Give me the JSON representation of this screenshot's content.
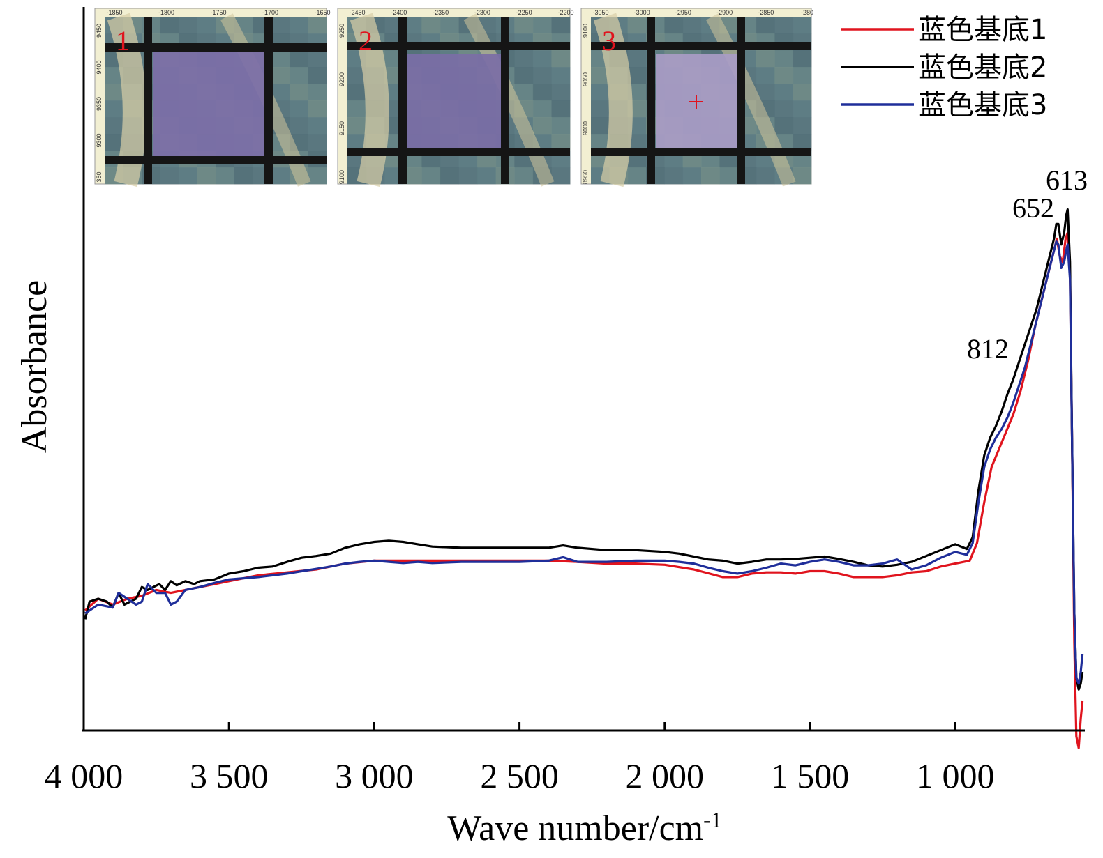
{
  "chart_data": {
    "type": "line",
    "xlabel": "Wave number/cm",
    "xlabel_sup": "-1",
    "ylabel": "Absorbance",
    "xlim": [
      4000,
      560
    ],
    "x_reversed": true,
    "ylim": [
      0,
      1
    ],
    "y_ticks_shown": false,
    "x_ticks": [
      {
        "value": 4000,
        "label": "4 000"
      },
      {
        "value": 3500,
        "label": "3 500"
      },
      {
        "value": 3000,
        "label": "3 000"
      },
      {
        "value": 2500,
        "label": "2 500"
      },
      {
        "value": 2000,
        "label": "2 000"
      },
      {
        "value": 1500,
        "label": "1 500"
      },
      {
        "value": 1000,
        "label": "1 000"
      }
    ],
    "legend": {
      "position": "top-right"
    },
    "annotations": [
      {
        "text": "812",
        "x": 812,
        "y": 0.61
      },
      {
        "text": "652",
        "x": 652,
        "y": 0.87
      },
      {
        "text": "613",
        "x": 613,
        "y": 0.91
      }
    ],
    "series": [
      {
        "name": "蓝色基底1",
        "color": "#e0141e",
        "points": [
          [
            3995,
            0.205
          ],
          [
            3950,
            0.225
          ],
          [
            3900,
            0.215
          ],
          [
            3850,
            0.225
          ],
          [
            3800,
            0.23
          ],
          [
            3750,
            0.24
          ],
          [
            3700,
            0.235
          ],
          [
            3650,
            0.24
          ],
          [
            3600,
            0.245
          ],
          [
            3550,
            0.25
          ],
          [
            3500,
            0.255
          ],
          [
            3400,
            0.265
          ],
          [
            3300,
            0.27
          ],
          [
            3200,
            0.275
          ],
          [
            3100,
            0.285
          ],
          [
            3000,
            0.29
          ],
          [
            2900,
            0.29
          ],
          [
            2800,
            0.29
          ],
          [
            2700,
            0.29
          ],
          [
            2600,
            0.29
          ],
          [
            2500,
            0.29
          ],
          [
            2400,
            0.29
          ],
          [
            2300,
            0.288
          ],
          [
            2200,
            0.285
          ],
          [
            2100,
            0.285
          ],
          [
            2000,
            0.283
          ],
          [
            1900,
            0.275
          ],
          [
            1800,
            0.262
          ],
          [
            1750,
            0.262
          ],
          [
            1700,
            0.268
          ],
          [
            1650,
            0.27
          ],
          [
            1600,
            0.27
          ],
          [
            1550,
            0.268
          ],
          [
            1500,
            0.272
          ],
          [
            1450,
            0.272
          ],
          [
            1400,
            0.268
          ],
          [
            1350,
            0.262
          ],
          [
            1300,
            0.262
          ],
          [
            1250,
            0.262
          ],
          [
            1200,
            0.265
          ],
          [
            1150,
            0.27
          ],
          [
            1100,
            0.272
          ],
          [
            1050,
            0.28
          ],
          [
            1000,
            0.285
          ],
          [
            950,
            0.29
          ],
          [
            925,
            0.32
          ],
          [
            900,
            0.39
          ],
          [
            875,
            0.45
          ],
          [
            850,
            0.48
          ],
          [
            825,
            0.51
          ],
          [
            800,
            0.54
          ],
          [
            775,
            0.58
          ],
          [
            750,
            0.63
          ],
          [
            725,
            0.69
          ],
          [
            700,
            0.74
          ],
          [
            680,
            0.78
          ],
          [
            660,
            0.82
          ],
          [
            650,
            0.84
          ],
          [
            640,
            0.81
          ],
          [
            630,
            0.8
          ],
          [
            620,
            0.84
          ],
          [
            613,
            0.85
          ],
          [
            605,
            0.78
          ],
          [
            598,
            0.5
          ],
          [
            590,
            0.15
          ],
          [
            583,
            -0.01
          ],
          [
            575,
            -0.03
          ],
          [
            568,
            0.02
          ],
          [
            562,
            0.05
          ]
        ]
      },
      {
        "name": "蓝色基底2",
        "color": "#000000",
        "points": [
          [
            3995,
            0.19
          ],
          [
            3980,
            0.22
          ],
          [
            3950,
            0.225
          ],
          [
            3920,
            0.22
          ],
          [
            3900,
            0.21
          ],
          [
            3880,
            0.235
          ],
          [
            3860,
            0.215
          ],
          [
            3840,
            0.22
          ],
          [
            3820,
            0.225
          ],
          [
            3800,
            0.245
          ],
          [
            3780,
            0.24
          ],
          [
            3760,
            0.245
          ],
          [
            3740,
            0.25
          ],
          [
            3720,
            0.24
          ],
          [
            3700,
            0.255
          ],
          [
            3680,
            0.248
          ],
          [
            3650,
            0.255
          ],
          [
            3620,
            0.25
          ],
          [
            3600,
            0.255
          ],
          [
            3550,
            0.258
          ],
          [
            3500,
            0.268
          ],
          [
            3450,
            0.272
          ],
          [
            3400,
            0.278
          ],
          [
            3350,
            0.28
          ],
          [
            3300,
            0.288
          ],
          [
            3250,
            0.295
          ],
          [
            3200,
            0.298
          ],
          [
            3150,
            0.302
          ],
          [
            3100,
            0.312
          ],
          [
            3050,
            0.318
          ],
          [
            3000,
            0.322
          ],
          [
            2950,
            0.324
          ],
          [
            2900,
            0.322
          ],
          [
            2850,
            0.318
          ],
          [
            2800,
            0.314
          ],
          [
            2700,
            0.312
          ],
          [
            2600,
            0.312
          ],
          [
            2500,
            0.312
          ],
          [
            2400,
            0.312
          ],
          [
            2350,
            0.316
          ],
          [
            2300,
            0.312
          ],
          [
            2200,
            0.308
          ],
          [
            2100,
            0.308
          ],
          [
            2000,
            0.305
          ],
          [
            1950,
            0.302
          ],
          [
            1900,
            0.297
          ],
          [
            1850,
            0.292
          ],
          [
            1800,
            0.29
          ],
          [
            1750,
            0.285
          ],
          [
            1700,
            0.288
          ],
          [
            1650,
            0.292
          ],
          [
            1600,
            0.292
          ],
          [
            1550,
            0.293
          ],
          [
            1500,
            0.295
          ],
          [
            1450,
            0.297
          ],
          [
            1400,
            0.293
          ],
          [
            1350,
            0.288
          ],
          [
            1300,
            0.282
          ],
          [
            1250,
            0.28
          ],
          [
            1200,
            0.283
          ],
          [
            1150,
            0.288
          ],
          [
            1100,
            0.298
          ],
          [
            1050,
            0.308
          ],
          [
            1000,
            0.318
          ],
          [
            960,
            0.31
          ],
          [
            940,
            0.33
          ],
          [
            920,
            0.41
          ],
          [
            900,
            0.47
          ],
          [
            880,
            0.5
          ],
          [
            860,
            0.52
          ],
          [
            840,
            0.545
          ],
          [
            820,
            0.575
          ],
          [
            800,
            0.6
          ],
          [
            780,
            0.63
          ],
          [
            760,
            0.66
          ],
          [
            740,
            0.69
          ],
          [
            720,
            0.72
          ],
          [
            700,
            0.76
          ],
          [
            680,
            0.8
          ],
          [
            660,
            0.84
          ],
          [
            652,
            0.865
          ],
          [
            645,
            0.865
          ],
          [
            635,
            0.83
          ],
          [
            625,
            0.85
          ],
          [
            618,
            0.88
          ],
          [
            613,
            0.89
          ],
          [
            605,
            0.8
          ],
          [
            598,
            0.5
          ],
          [
            590,
            0.2
          ],
          [
            583,
            0.09
          ],
          [
            575,
            0.07
          ],
          [
            568,
            0.08
          ],
          [
            562,
            0.1
          ]
        ]
      },
      {
        "name": "蓝色基底3",
        "color": "#1f2e9a",
        "points": [
          [
            3995,
            0.2
          ],
          [
            3950,
            0.215
          ],
          [
            3900,
            0.21
          ],
          [
            3880,
            0.235
          ],
          [
            3850,
            0.225
          ],
          [
            3820,
            0.215
          ],
          [
            3800,
            0.22
          ],
          [
            3780,
            0.25
          ],
          [
            3750,
            0.235
          ],
          [
            3720,
            0.235
          ],
          [
            3700,
            0.215
          ],
          [
            3680,
            0.22
          ],
          [
            3650,
            0.24
          ],
          [
            3600,
            0.245
          ],
          [
            3550,
            0.252
          ],
          [
            3500,
            0.258
          ],
          [
            3450,
            0.26
          ],
          [
            3400,
            0.262
          ],
          [
            3350,
            0.265
          ],
          [
            3300,
            0.268
          ],
          [
            3250,
            0.272
          ],
          [
            3200,
            0.276
          ],
          [
            3150,
            0.28
          ],
          [
            3100,
            0.285
          ],
          [
            3050,
            0.288
          ],
          [
            3000,
            0.29
          ],
          [
            2950,
            0.288
          ],
          [
            2900,
            0.286
          ],
          [
            2850,
            0.288
          ],
          [
            2800,
            0.286
          ],
          [
            2700,
            0.288
          ],
          [
            2600,
            0.288
          ],
          [
            2500,
            0.288
          ],
          [
            2400,
            0.29
          ],
          [
            2350,
            0.296
          ],
          [
            2300,
            0.288
          ],
          [
            2200,
            0.288
          ],
          [
            2100,
            0.29
          ],
          [
            2000,
            0.29
          ],
          [
            1950,
            0.288
          ],
          [
            1900,
            0.285
          ],
          [
            1850,
            0.278
          ],
          [
            1800,
            0.272
          ],
          [
            1750,
            0.268
          ],
          [
            1700,
            0.272
          ],
          [
            1650,
            0.278
          ],
          [
            1600,
            0.285
          ],
          [
            1550,
            0.282
          ],
          [
            1500,
            0.288
          ],
          [
            1450,
            0.292
          ],
          [
            1400,
            0.288
          ],
          [
            1350,
            0.282
          ],
          [
            1300,
            0.282
          ],
          [
            1250,
            0.285
          ],
          [
            1200,
            0.292
          ],
          [
            1150,
            0.275
          ],
          [
            1100,
            0.282
          ],
          [
            1050,
            0.295
          ],
          [
            1000,
            0.305
          ],
          [
            960,
            0.3
          ],
          [
            940,
            0.32
          ],
          [
            920,
            0.39
          ],
          [
            900,
            0.45
          ],
          [
            880,
            0.48
          ],
          [
            860,
            0.5
          ],
          [
            840,
            0.515
          ],
          [
            820,
            0.535
          ],
          [
            800,
            0.56
          ],
          [
            780,
            0.59
          ],
          [
            760,
            0.62
          ],
          [
            740,
            0.66
          ],
          [
            720,
            0.7
          ],
          [
            700,
            0.74
          ],
          [
            680,
            0.78
          ],
          [
            660,
            0.82
          ],
          [
            652,
            0.835
          ],
          [
            645,
            0.83
          ],
          [
            635,
            0.79
          ],
          [
            625,
            0.8
          ],
          [
            618,
            0.82
          ],
          [
            613,
            0.83
          ],
          [
            605,
            0.77
          ],
          [
            598,
            0.5
          ],
          [
            590,
            0.2
          ],
          [
            583,
            0.09
          ],
          [
            575,
            0.08
          ],
          [
            568,
            0.1
          ],
          [
            562,
            0.13
          ]
        ]
      }
    ],
    "insets": [
      {
        "label": "1",
        "x_ticks": [
          "-1850",
          "-1800",
          "-1750",
          "-1700",
          "-1650"
        ],
        "y_ticks": [
          "9450",
          "9400",
          "9350",
          "9300",
          "350"
        ]
      },
      {
        "label": "2",
        "x_ticks": [
          "-2450",
          "-2400",
          "-2350",
          "-2300",
          "-2250",
          "-2200"
        ],
        "y_ticks": [
          "9250",
          "9200",
          "9150",
          "9100"
        ]
      },
      {
        "label": "3",
        "x_ticks": [
          "-3050",
          "-3000",
          "-2950",
          "-2900",
          "-2850",
          "-280"
        ],
        "y_ticks": [
          "9100",
          "9050",
          "9000",
          "8950"
        ]
      }
    ]
  }
}
